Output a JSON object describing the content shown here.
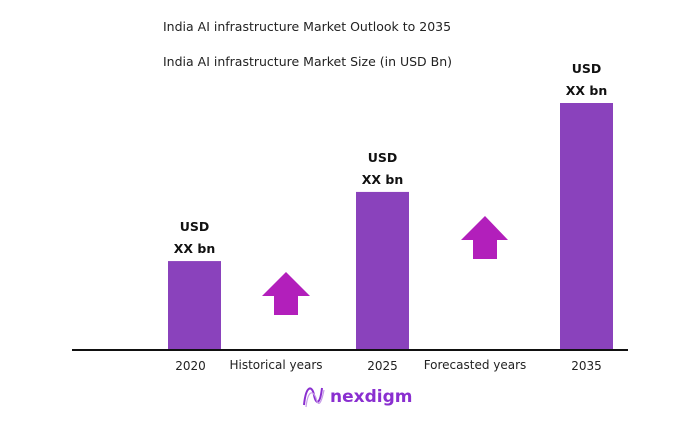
{
  "chart_data": {
    "type": "bar",
    "title": "India AI infrastructure Market Outlook to 2035",
    "subtitle": "India AI infrastructure Market Size (in USD Bn)",
    "categories": [
      "2020",
      "2025",
      "2035"
    ],
    "values": [
      36,
      64,
      100
    ],
    "value_note": "relative index, 2035 = 100",
    "data_labels": [
      [
        "USD",
        "XX bn"
      ],
      [
        "USD",
        "XX bn"
      ],
      [
        "USD",
        "XX bn"
      ]
    ],
    "period_labels": [
      "Historical years",
      "Forecasted years"
    ],
    "ylim": [
      0,
      100
    ],
    "grid": false,
    "legend": "none",
    "colors": {
      "bar": "#8a42bc",
      "arrow": "#b21fbb",
      "axis": "#111111",
      "logo": "#8a2fd0"
    }
  },
  "brand": {
    "name": "nexdigm"
  }
}
